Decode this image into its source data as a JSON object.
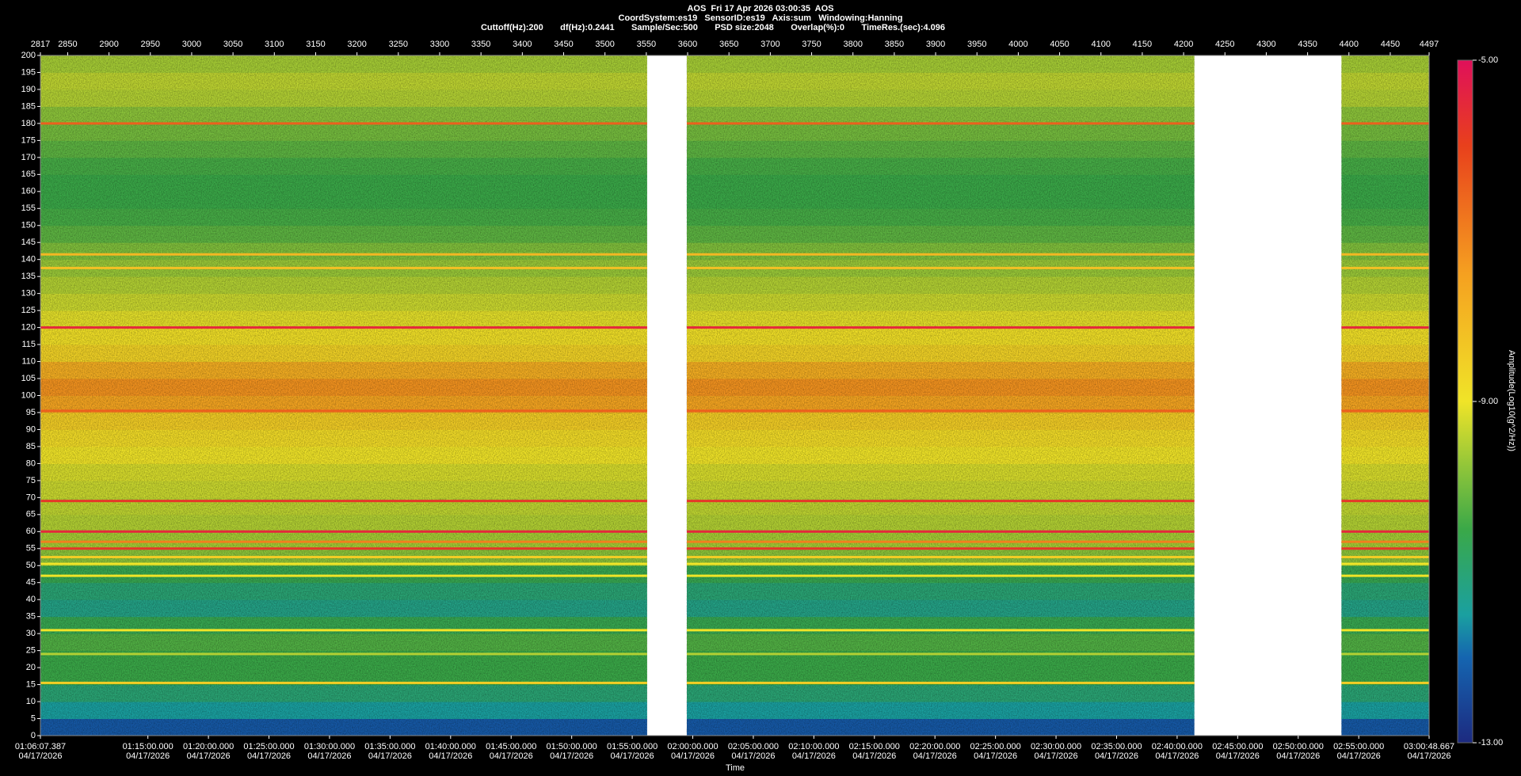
{
  "chart_data": {
    "type": "spectrogram",
    "title": "AOS  Fri 17 Apr 2026 03:00:35  AOS",
    "subtitle": "CoordSystem:es19   SensorID:es19   Axis:sum   Windowing:Hanning",
    "info": "Cuttoff(Hz):200       df(Hz):0.2441       Sample/Sec:500       PSD size:2048       Overlap(%):0       TimeRes.(sec):4.096",
    "xlabel": "Time",
    "colorbar_label": "Amplitude(Log10(g^2/Hz))",
    "xlim": [
      2817,
      4497
    ],
    "ylim": [
      0,
      200
    ],
    "clim": [
      -13,
      -5
    ],
    "top_xticks": [
      2817,
      2850,
      2900,
      2950,
      3000,
      3050,
      3100,
      3150,
      3200,
      3250,
      3300,
      3350,
      3400,
      3450,
      3500,
      3550,
      3600,
      3650,
      3700,
      3750,
      3800,
      3850,
      3900,
      3950,
      4000,
      4050,
      4100,
      4150,
      4200,
      4250,
      4300,
      4350,
      4400,
      4450,
      4497
    ],
    "xticks": [
      {
        "value": 2817,
        "label": "01:06:07.387",
        "date": "04/17/2026"
      },
      {
        "value": 2947.03,
        "label": "01:15:00.000",
        "date": "04/17/2026"
      },
      {
        "value": 3020.27,
        "label": "01:20:00.000",
        "date": "04/17/2026"
      },
      {
        "value": 3093.52,
        "label": "01:25:00.000",
        "date": "04/17/2026"
      },
      {
        "value": 3166.76,
        "label": "01:30:00.000",
        "date": "04/17/2026"
      },
      {
        "value": 3240.0,
        "label": "01:35:00.000",
        "date": "04/17/2026"
      },
      {
        "value": 3313.24,
        "label": "01:40:00.000",
        "date": "04/17/2026"
      },
      {
        "value": 3386.49,
        "label": "01:45:00.000",
        "date": "04/17/2026"
      },
      {
        "value": 3459.73,
        "label": "01:50:00.000",
        "date": "04/17/2026"
      },
      {
        "value": 3532.97,
        "label": "01:55:00.000",
        "date": "04/17/2026"
      },
      {
        "value": 3606.21,
        "label": "02:00:00.000",
        "date": "04/17/2026"
      },
      {
        "value": 3679.46,
        "label": "02:05:00.000",
        "date": "04/17/2026"
      },
      {
        "value": 3752.7,
        "label": "02:10:00.000",
        "date": "04/17/2026"
      },
      {
        "value": 3825.94,
        "label": "02:15:00.000",
        "date": "04/17/2026"
      },
      {
        "value": 3899.18,
        "label": "02:20:00.000",
        "date": "04/17/2026"
      },
      {
        "value": 3972.43,
        "label": "02:25:00.000",
        "date": "04/17/2026"
      },
      {
        "value": 4045.67,
        "label": "02:30:00.000",
        "date": "04/17/2026"
      },
      {
        "value": 4118.91,
        "label": "02:35:00.000",
        "date": "04/17/2026"
      },
      {
        "value": 4192.16,
        "label": "02:40:00.000",
        "date": "04/17/2026"
      },
      {
        "value": 4265.4,
        "label": "02:45:00.000",
        "date": "04/17/2026"
      },
      {
        "value": 4338.64,
        "label": "02:50:00.000",
        "date": "04/17/2026"
      },
      {
        "value": 4411.88,
        "label": "02:55:00.000",
        "date": "04/17/2026"
      },
      {
        "value": 4497,
        "label": "03:00:48.667",
        "date": "04/17/2026"
      }
    ],
    "yticks": [
      0,
      5,
      10,
      15,
      20,
      25,
      30,
      35,
      40,
      45,
      50,
      55,
      60,
      65,
      70,
      75,
      80,
      85,
      90,
      95,
      100,
      105,
      110,
      115,
      120,
      125,
      130,
      135,
      140,
      145,
      150,
      155,
      160,
      165,
      170,
      175,
      180,
      185,
      190,
      195,
      200
    ],
    "cticks": [
      {
        "value": -5,
        "label": "-5.00"
      },
      {
        "value": -9,
        "label": "-9.00"
      },
      {
        "value": -13,
        "label": "-13.00"
      }
    ],
    "colorscale": [
      {
        "value": -13,
        "color": "#1c2a80"
      },
      {
        "value": -12,
        "color": "#1565b0"
      },
      {
        "value": -11.5,
        "color": "#1aa0a0"
      },
      {
        "value": -10.5,
        "color": "#3aa848"
      },
      {
        "value": -9.8,
        "color": "#8cc43a"
      },
      {
        "value": -9,
        "color": "#f0e428"
      },
      {
        "value": -7.5,
        "color": "#f5a020"
      },
      {
        "value": -6,
        "color": "#e8401c"
      },
      {
        "value": -5,
        "color": "#e0105a"
      }
    ],
    "segments": [
      [
        2817,
        3551
      ],
      [
        3599,
        4213
      ],
      [
        4391,
        4497
      ]
    ],
    "bins": [
      0,
      5,
      10,
      15,
      20,
      25,
      30,
      35,
      40,
      45,
      50,
      55,
      60,
      65,
      70,
      75,
      80,
      85,
      90,
      95,
      100,
      105,
      110,
      115,
      120,
      125,
      130,
      135,
      140,
      145,
      150,
      155,
      160,
      165,
      170,
      175,
      180,
      185,
      190,
      195,
      200
    ],
    "amplitude": [
      -12.2,
      -11.5,
      -11,
      -10.5,
      -10.5,
      -10.3,
      -10.6,
      -11.2,
      -11,
      -10.6,
      -9.8,
      -9.6,
      -9.5,
      -9.4,
      -9.3,
      -9.2,
      -9,
      -8.8,
      -8.5,
      -7.6,
      -7.3,
      -7.8,
      -8.6,
      -8.9,
      -9.1,
      -9.3,
      -9.5,
      -9.7,
      -9.9,
      -10.2,
      -10.4,
      -10.5,
      -10.5,
      -10.4,
      -10.2,
      -10,
      -9.8,
      -9.5,
      -9.4,
      -9.6
    ],
    "lines": {
      "freq": [
        180,
        141.5,
        137.5,
        120,
        95.5,
        69,
        60,
        57,
        55,
        52.5,
        50.5,
        47,
        31,
        24,
        15.5
      ],
      "amplitude": [
        -6.5,
        -8,
        -8.2,
        -5.5,
        -6.5,
        -5.8,
        -5.5,
        -7,
        -5.8,
        -8.5,
        -9,
        -9,
        -9,
        -9.5,
        -8.5
      ]
    }
  }
}
